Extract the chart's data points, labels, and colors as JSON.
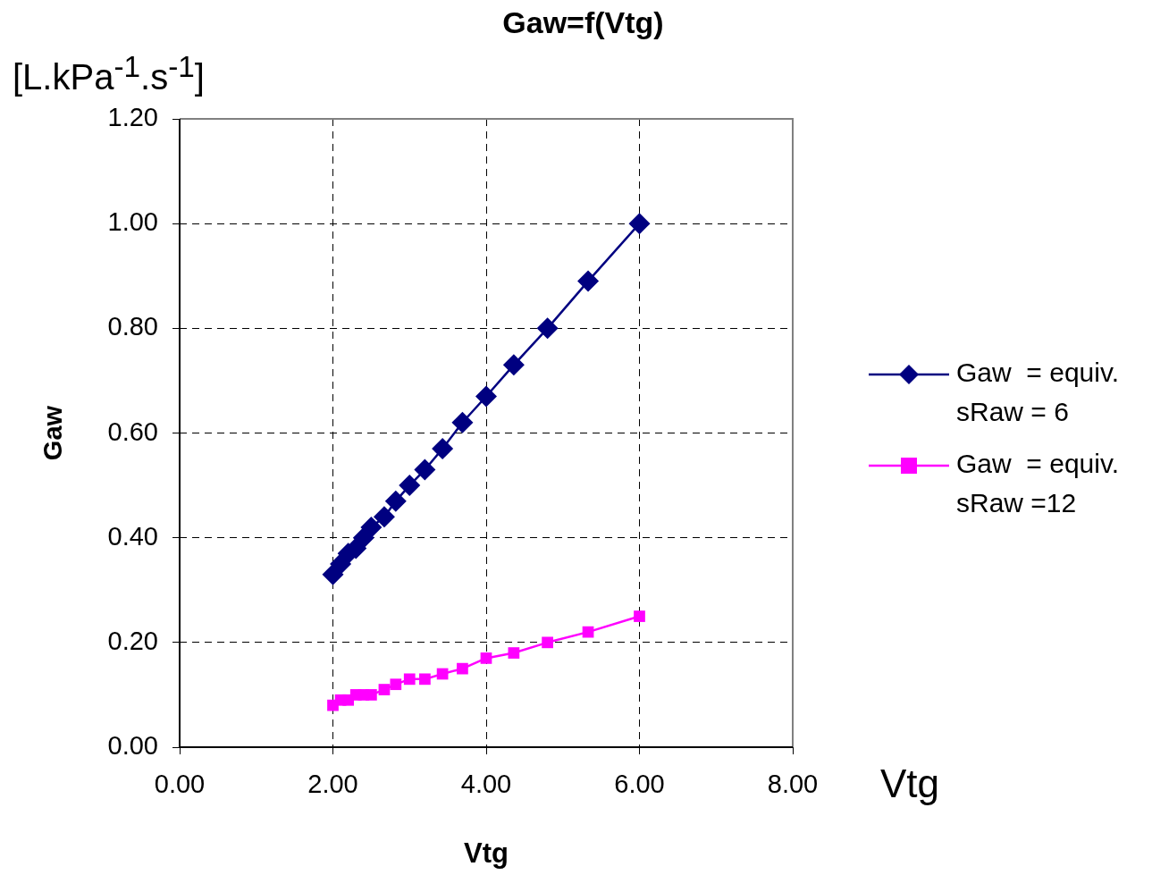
{
  "chart_data": {
    "type": "line",
    "title": "Gaw=f(Vtg)",
    "xlabel": "Vtg",
    "ylabel": "Gaw",
    "annotations": [
      "[L.kPa$^{-1}$.s$^{-1}$]",
      "Vtg"
    ],
    "x": [
      2.0,
      2.1,
      2.2,
      2.3,
      2.4,
      2.5,
      2.67,
      2.82,
      3.0,
      3.2,
      3.43,
      3.69,
      4.0,
      4.36,
      4.8,
      5.33,
      6.0
    ],
    "series": [
      {
        "name": "Gaw  = equiv. sRaw = 6",
        "color": "#000080",
        "marker": "diamond",
        "values": [
          0.33,
          0.35,
          0.37,
          0.38,
          0.4,
          0.42,
          0.44,
          0.47,
          0.5,
          0.53,
          0.57,
          0.62,
          0.67,
          0.73,
          0.8,
          0.89,
          1.0
        ]
      },
      {
        "name": "Gaw  = equiv. sRaw =12",
        "color": "#ff00ff",
        "marker": "square",
        "values": [
          0.08,
          0.09,
          0.09,
          0.1,
          0.1,
          0.1,
          0.11,
          0.12,
          0.13,
          0.13,
          0.14,
          0.15,
          0.17,
          0.18,
          0.2,
          0.22,
          0.25
        ]
      }
    ],
    "xlim": [
      0,
      8
    ],
    "xticks": [
      {
        "value": 0,
        "label": "0.00"
      },
      {
        "value": 2,
        "label": "2.00"
      },
      {
        "value": 4,
        "label": "4.00"
      },
      {
        "value": 6,
        "label": "6.00"
      },
      {
        "value": 8,
        "label": "8.00"
      }
    ],
    "ylim": [
      0,
      1.2
    ],
    "yticks": [
      {
        "value": 0,
        "label": "0.00"
      },
      {
        "value": 0.2,
        "label": "0.20"
      },
      {
        "value": 0.4,
        "label": "0.40"
      },
      {
        "value": 0.6,
        "label": "0.60"
      },
      {
        "value": 0.8,
        "label": "0.80"
      },
      {
        "value": 1.0,
        "label": "1.00"
      },
      {
        "value": 1.2,
        "label": "1.20"
      }
    ],
    "grid": true,
    "legend": "right",
    "line_style": "solid"
  }
}
